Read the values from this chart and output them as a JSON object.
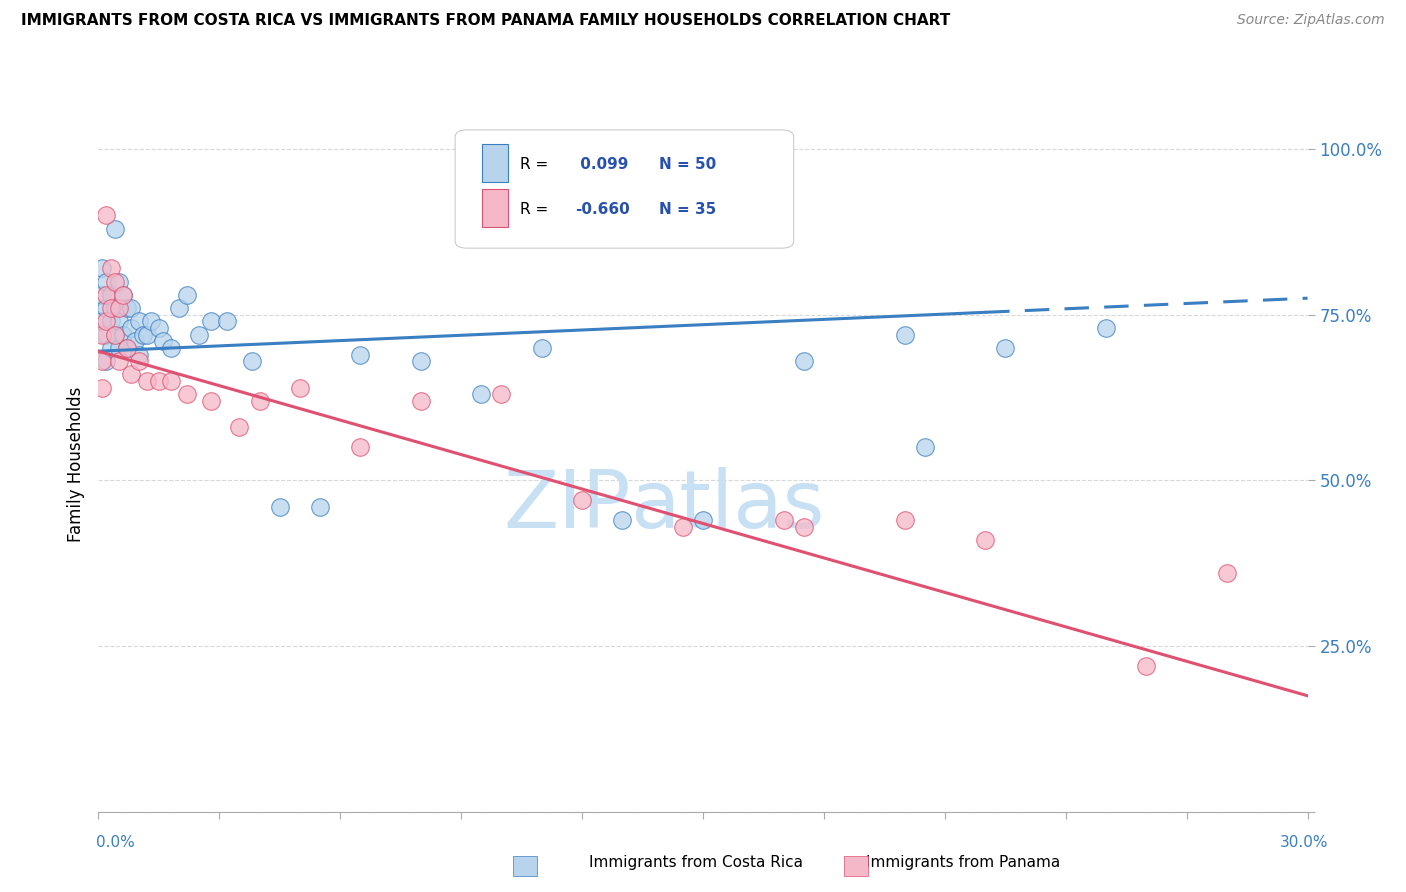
{
  "title": "IMMIGRANTS FROM COSTA RICA VS IMMIGRANTS FROM PANAMA FAMILY HOUSEHOLDS CORRELATION CHART",
  "source": "Source: ZipAtlas.com",
  "ylabel": "Family Households",
  "yticks": [
    0.0,
    0.25,
    0.5,
    0.75,
    1.0
  ],
  "ytick_labels": [
    "",
    "25.0%",
    "50.0%",
    "75.0%",
    "100.0%"
  ],
  "xlim": [
    0.0,
    0.3
  ],
  "ylim": [
    0.0,
    1.05
  ],
  "costa_rica_R": 0.099,
  "costa_rica_N": 50,
  "panama_R": -0.66,
  "panama_N": 35,
  "costa_rica_color": "#b8d4ec",
  "panama_color": "#f5b8c8",
  "costa_rica_line_color": "#3a7fc1",
  "panama_line_color": "#e05070",
  "background_color": "#ffffff",
  "watermark_zip": "ZIP",
  "watermark_atlas": "atlas",
  "watermark_color_zip": "#c8e0f4",
  "watermark_color_atlas": "#c8e0f4",
  "legend_R_color": "#2850b0",
  "grid_color": "#d8d8d8",
  "cr_trend_y0": 0.695,
  "cr_trend_y1": 0.775,
  "pa_trend_y0": 0.695,
  "pa_trend_y1": 0.175,
  "costa_rica_scatter_x": [
    0.001,
    0.001,
    0.001,
    0.002,
    0.002,
    0.002,
    0.002,
    0.003,
    0.003,
    0.003,
    0.004,
    0.004,
    0.004,
    0.005,
    0.005,
    0.005,
    0.006,
    0.006,
    0.007,
    0.007,
    0.008,
    0.008,
    0.009,
    0.01,
    0.01,
    0.011,
    0.012,
    0.013,
    0.015,
    0.016,
    0.018,
    0.02,
    0.022,
    0.025,
    0.028,
    0.032,
    0.038,
    0.045,
    0.055,
    0.065,
    0.08,
    0.095,
    0.11,
    0.13,
    0.15,
    0.175,
    0.2,
    0.225,
    0.25,
    0.205
  ],
  "costa_rica_scatter_y": [
    0.82,
    0.78,
    0.74,
    0.8,
    0.76,
    0.72,
    0.68,
    0.78,
    0.74,
    0.7,
    0.76,
    0.72,
    0.88,
    0.8,
    0.74,
    0.7,
    0.78,
    0.72,
    0.76,
    0.7,
    0.76,
    0.73,
    0.71,
    0.74,
    0.69,
    0.72,
    0.72,
    0.74,
    0.73,
    0.71,
    0.7,
    0.76,
    0.78,
    0.72,
    0.74,
    0.74,
    0.68,
    0.46,
    0.46,
    0.69,
    0.68,
    0.63,
    0.7,
    0.44,
    0.44,
    0.68,
    0.72,
    0.7,
    0.73,
    0.55
  ],
  "panama_scatter_x": [
    0.001,
    0.001,
    0.001,
    0.002,
    0.002,
    0.002,
    0.003,
    0.003,
    0.004,
    0.004,
    0.005,
    0.005,
    0.006,
    0.007,
    0.008,
    0.01,
    0.012,
    0.015,
    0.018,
    0.022,
    0.028,
    0.035,
    0.04,
    0.05,
    0.065,
    0.08,
    0.1,
    0.12,
    0.145,
    0.17,
    0.2,
    0.22,
    0.26,
    0.28,
    0.175
  ],
  "panama_scatter_y": [
    0.72,
    0.68,
    0.64,
    0.9,
    0.78,
    0.74,
    0.82,
    0.76,
    0.8,
    0.72,
    0.76,
    0.68,
    0.78,
    0.7,
    0.66,
    0.68,
    0.65,
    0.65,
    0.65,
    0.63,
    0.62,
    0.58,
    0.62,
    0.64,
    0.55,
    0.62,
    0.63,
    0.47,
    0.43,
    0.44,
    0.44,
    0.41,
    0.22,
    0.36,
    0.43
  ]
}
